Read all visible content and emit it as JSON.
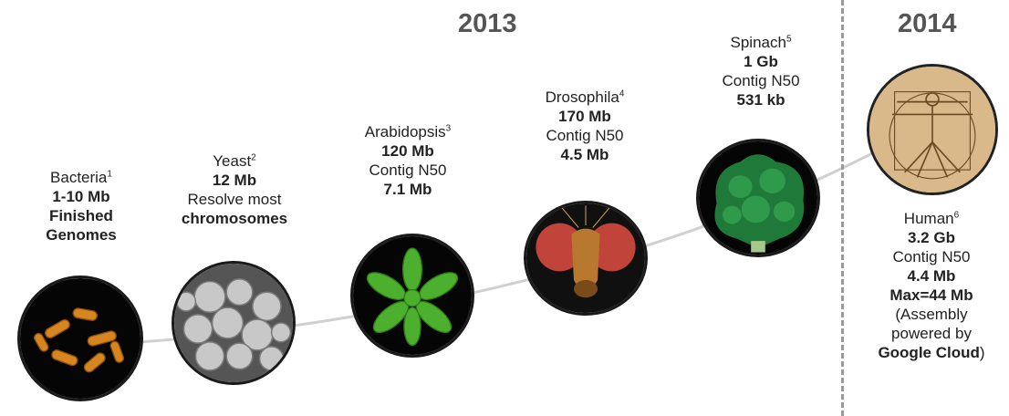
{
  "years": {
    "y2013": "2013",
    "y2014": "2014"
  },
  "organisms": [
    {
      "name": "Bacteria",
      "ref": "1",
      "lines": [
        [
          "1-10 Mb",
          true
        ],
        [
          "Finished",
          true
        ],
        [
          "Genomes",
          true
        ]
      ],
      "icon": "bacteria-image"
    },
    {
      "name": "Yeast",
      "ref": "2",
      "lines": [
        [
          "12 Mb",
          true
        ],
        [
          "Resolve most",
          false
        ],
        [
          "chromosomes",
          true
        ]
      ],
      "icon": "yeast-image"
    },
    {
      "name": "Arabidopsis",
      "ref": "3",
      "lines": [
        [
          "120 Mb",
          true
        ],
        [
          "Contig N50",
          false
        ],
        [
          "7.1 Mb",
          true
        ]
      ],
      "icon": "arabidopsis-image"
    },
    {
      "name": "Drosophila",
      "ref": "4",
      "lines": [
        [
          "170 Mb",
          true
        ],
        [
          "Contig N50",
          false
        ],
        [
          "4.5 Mb",
          true
        ]
      ],
      "icon": "drosophila-image"
    },
    {
      "name": "Spinach",
      "ref": "5",
      "lines": [
        [
          "1 Gb",
          true
        ],
        [
          "Contig N50",
          false
        ],
        [
          "531 kb",
          true
        ]
      ],
      "icon": "spinach-image"
    },
    {
      "name": "Human",
      "ref": "6",
      "lines": [
        [
          "3.2 Gb",
          true
        ],
        [
          "Contig N50",
          false
        ],
        [
          "4.4 Mb",
          true
        ],
        [
          "Max=44 Mb",
          true
        ],
        [
          "(Assembly",
          false
        ],
        [
          "powered by",
          false
        ]
      ],
      "icon": "vitruvian-man-image"
    }
  ],
  "human_last": {
    "strong": "Google Cloud",
    "tail": ")"
  },
  "colors": {
    "year": "#555555",
    "divider": "#9a9a9a",
    "curve": "#d0d0d0"
  }
}
